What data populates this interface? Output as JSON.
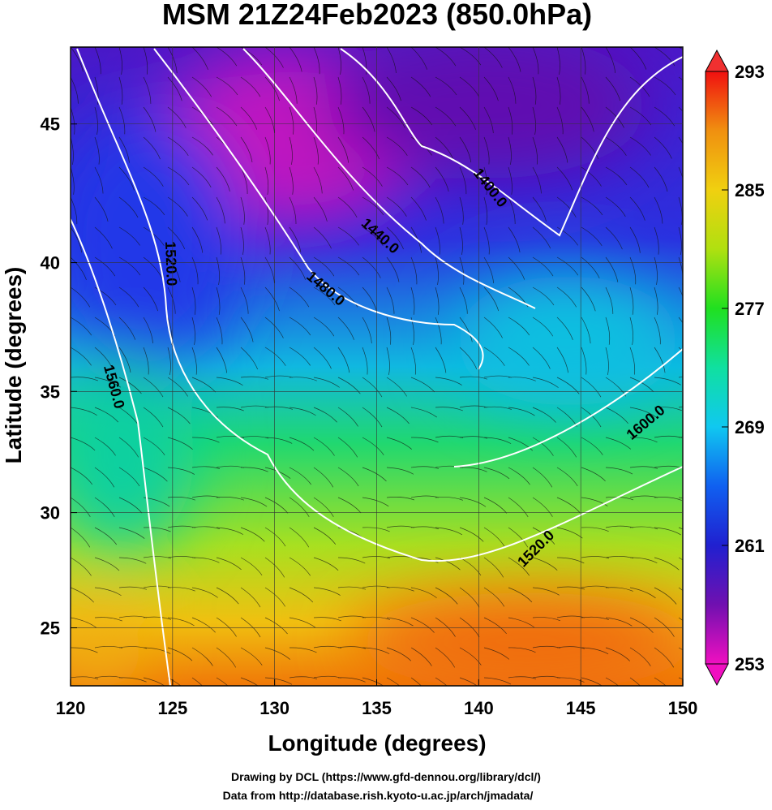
{
  "chart_data": {
    "type": "map",
    "title": "MSM 21Z24Feb2023 (850.0hPa)",
    "x_label": "Longitude (degrees)",
    "y_label": "Latitude  (degrees)",
    "xlim": [
      120,
      150
    ],
    "ylim": [
      22.4,
      47.6
    ],
    "xticks": [
      120,
      125,
      130,
      135,
      140,
      145,
      150
    ],
    "yticks": [
      25,
      30,
      35,
      40,
      45
    ],
    "grid": true,
    "projection": "mercator",
    "colorbar": {
      "lim": [
        253,
        293
      ],
      "ticks": [
        253,
        261,
        269,
        277,
        285,
        293
      ]
    },
    "contour_labels": [
      "1400.0",
      "1440.0",
      "1480.0",
      "1520.0",
      "1560.0",
      "1600.0",
      "1520.0"
    ],
    "credits": [
      "Drawing by DCL (https://www.gfd-dennou.org/library/dcl/)",
      "Data from http://database.rish.kyoto-u.ac.jp/arch/jmadata/"
    ]
  }
}
